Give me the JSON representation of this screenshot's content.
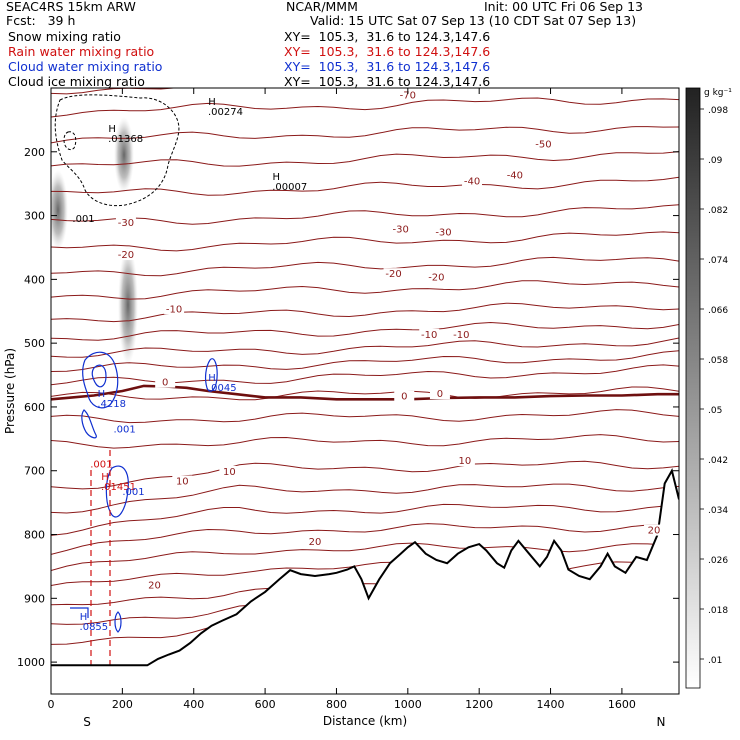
{
  "header": {
    "model": "SEAC4RS 15km ARW",
    "center": "NCAR/MMM",
    "init": "Init: 00 UTC Fri 06 Sep 13",
    "fcst": "Fcst:   39 h",
    "valid": "Valid: 15 UTC Sat 07 Sep 13 (10 CDT Sat 07 Sep 13)",
    "fields": [
      {
        "name": "Snow mixing ratio",
        "xy": "XY=  105.3,  31.6 to 124.3,147.6",
        "color": "#000000"
      },
      {
        "name": "Rain water mixing ratio",
        "xy": "XY=  105.3,  31.6 to 124.3,147.6",
        "color": "#d01010"
      },
      {
        "name": "Cloud water mixing ratio",
        "xy": "XY=  105.3,  31.6 to 124.3,147.6",
        "color": "#1030d0"
      },
      {
        "name": "Cloud ice mixing ratio",
        "xy": "XY=  105.3,  31.6 to 124.3,147.6",
        "color": "#000000"
      }
    ]
  },
  "chart_data": {
    "type": "cross-section contour",
    "xlabel": "Distance (km)",
    "ylabel": "Pressure (hPa)",
    "xlim": [
      0,
      1760
    ],
    "ylim": [
      1050,
      100
    ],
    "x_ticks": [
      0,
      200,
      400,
      600,
      800,
      1000,
      1200,
      1400,
      1600
    ],
    "y_ticks": [
      200,
      300,
      400,
      500,
      600,
      700,
      800,
      900,
      1000
    ],
    "endpoints": {
      "left": "S",
      "right": "N"
    },
    "colorbar": {
      "unit": "g kg⁻¹",
      "ticks": [
        ".01",
        ".018",
        ".026",
        ".034",
        ".042",
        ".05",
        ".058",
        ".066",
        ".074",
        ".082",
        ".09",
        ".098"
      ]
    },
    "temperature_labels": [
      {
        "text": "-70",
        "x": 1000,
        "p": 115
      },
      {
        "text": "-50",
        "x": 1380,
        "p": 192
      },
      {
        "text": "-40",
        "x": 1300,
        "p": 240
      },
      {
        "text": "-40",
        "x": 1180,
        "p": 250
      },
      {
        "text": "-30",
        "x": 210,
        "p": 315
      },
      {
        "text": "-30",
        "x": 980,
        "p": 325
      },
      {
        "text": "-30",
        "x": 1100,
        "p": 330
      },
      {
        "text": "-20",
        "x": 210,
        "p": 365
      },
      {
        "text": "-20",
        "x": 960,
        "p": 395
      },
      {
        "text": "-20",
        "x": 1080,
        "p": 400
      },
      {
        "text": "-10",
        "x": 345,
        "p": 450
      },
      {
        "text": "-10",
        "x": 1060,
        "p": 490
      },
      {
        "text": "-10",
        "x": 1150,
        "p": 490
      },
      {
        "text": "0",
        "x": 320,
        "p": 565
      },
      {
        "text": "0",
        "x": 990,
        "p": 587
      },
      {
        "text": "0",
        "x": 1090,
        "p": 583
      },
      {
        "text": "10",
        "x": 368,
        "p": 720
      },
      {
        "text": "10",
        "x": 500,
        "p": 705
      },
      {
        "text": "10",
        "x": 1160,
        "p": 688
      },
      {
        "text": "20",
        "x": 290,
        "p": 883
      },
      {
        "text": "20",
        "x": 740,
        "p": 815
      },
      {
        "text": "20",
        "x": 1690,
        "p": 797
      }
    ],
    "max_labels": [
      {
        "h": "H",
        "value": ".00274",
        "x": 440,
        "p": 142,
        "color": "#000000"
      },
      {
        "h": "H",
        "value": ".01368",
        "x": 160,
        "p": 185,
        "color": "#000000"
      },
      {
        "h": "H",
        "value": ".00007",
        "x": 620,
        "p": 260,
        "color": "#000000"
      },
      {
        "value": ".001",
        "x": 60,
        "p": 310,
        "color": "#000000"
      },
      {
        "h": "H",
        "value": ".0045",
        "x": 440,
        "p": 575,
        "color": "#1030d0"
      },
      {
        "h": "H",
        "value": ".4218",
        "x": 130,
        "p": 600,
        "color": "#1030d0"
      },
      {
        "value": ".001",
        "x": 175,
        "p": 640,
        "color": "#1030d0"
      },
      {
        "value": ".001",
        "x": 110,
        "p": 695,
        "color": "#d01010"
      },
      {
        "h": "H",
        "value": ".01451",
        "x": 140,
        "p": 730,
        "color": "#d01010"
      },
      {
        "value": ".001",
        "x": 200,
        "p": 738,
        "color": "#1030d0"
      },
      {
        "h": "H",
        "value": ".0855",
        "x": 80,
        "p": 950,
        "color": "#1030d0"
      }
    ],
    "terrain": [
      [
        0,
        1005
      ],
      [
        270,
        1005
      ],
      [
        300,
        995
      ],
      [
        330,
        988
      ],
      [
        360,
        982
      ],
      [
        390,
        970
      ],
      [
        420,
        955
      ],
      [
        450,
        943
      ],
      [
        480,
        935
      ],
      [
        520,
        925
      ],
      [
        560,
        905
      ],
      [
        600,
        890
      ],
      [
        640,
        870
      ],
      [
        670,
        856
      ],
      [
        700,
        862
      ],
      [
        740,
        865
      ],
      [
        780,
        862
      ],
      [
        800,
        860
      ],
      [
        830,
        855
      ],
      [
        850,
        850
      ],
      [
        870,
        870
      ],
      [
        890,
        900
      ],
      [
        920,
        870
      ],
      [
        950,
        845
      ],
      [
        980,
        830
      ],
      [
        1000,
        820
      ],
      [
        1020,
        812
      ],
      [
        1050,
        830
      ],
      [
        1080,
        840
      ],
      [
        1110,
        845
      ],
      [
        1140,
        830
      ],
      [
        1170,
        820
      ],
      [
        1200,
        815
      ],
      [
        1220,
        825
      ],
      [
        1250,
        845
      ],
      [
        1270,
        852
      ],
      [
        1290,
        825
      ],
      [
        1310,
        810
      ],
      [
        1340,
        830
      ],
      [
        1370,
        850
      ],
      [
        1390,
        835
      ],
      [
        1410,
        810
      ],
      [
        1430,
        825
      ],
      [
        1450,
        855
      ],
      [
        1480,
        865
      ],
      [
        1510,
        870
      ],
      [
        1540,
        850
      ],
      [
        1560,
        830
      ],
      [
        1580,
        850
      ],
      [
        1610,
        860
      ],
      [
        1640,
        835
      ],
      [
        1670,
        840
      ],
      [
        1700,
        800
      ],
      [
        1720,
        720
      ],
      [
        1740,
        700
      ],
      [
        1760,
        745
      ]
    ],
    "freezing_level": [
      [
        0,
        588
      ],
      [
        60,
        585
      ],
      [
        120,
        582
      ],
      [
        200,
        575
      ],
      [
        260,
        567
      ],
      [
        320,
        568
      ],
      [
        380,
        570
      ],
      [
        440,
        575
      ],
      [
        520,
        580
      ],
      [
        600,
        585
      ],
      [
        700,
        585
      ],
      [
        800,
        588
      ],
      [
        900,
        588
      ],
      [
        1000,
        588
      ],
      [
        1100,
        586
      ],
      [
        1200,
        585
      ],
      [
        1300,
        585
      ],
      [
        1400,
        583
      ],
      [
        1500,
        582
      ],
      [
        1600,
        582
      ],
      [
        1700,
        580
      ],
      [
        1760,
        580
      ]
    ]
  }
}
